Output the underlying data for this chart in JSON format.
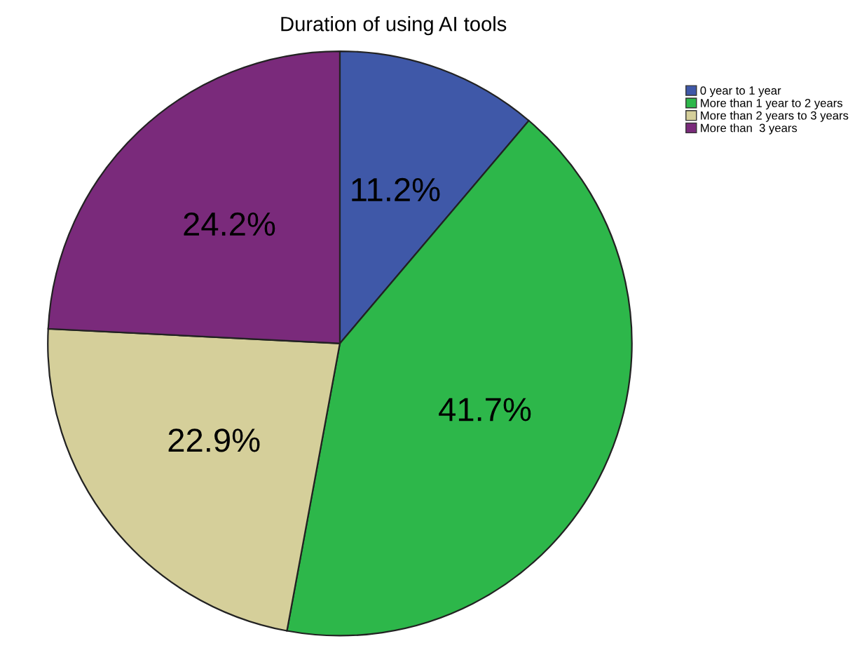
{
  "chart_data": {
    "type": "pie",
    "title": "Duration of using AI tools",
    "categories": [
      "0 year to 1 year",
      "More than 1 year to 2 years",
      "More than 2 years to 3 years",
      "More than  3 years"
    ],
    "values": [
      11.2,
      41.7,
      22.9,
      24.2
    ],
    "colors": [
      "#3f58a8",
      "#2db74a",
      "#d5cf9a",
      "#7a2a7b"
    ],
    "value_labels": [
      "11.2%",
      "41.7%",
      "22.9%",
      "24.2%"
    ],
    "legend": "top right"
  }
}
